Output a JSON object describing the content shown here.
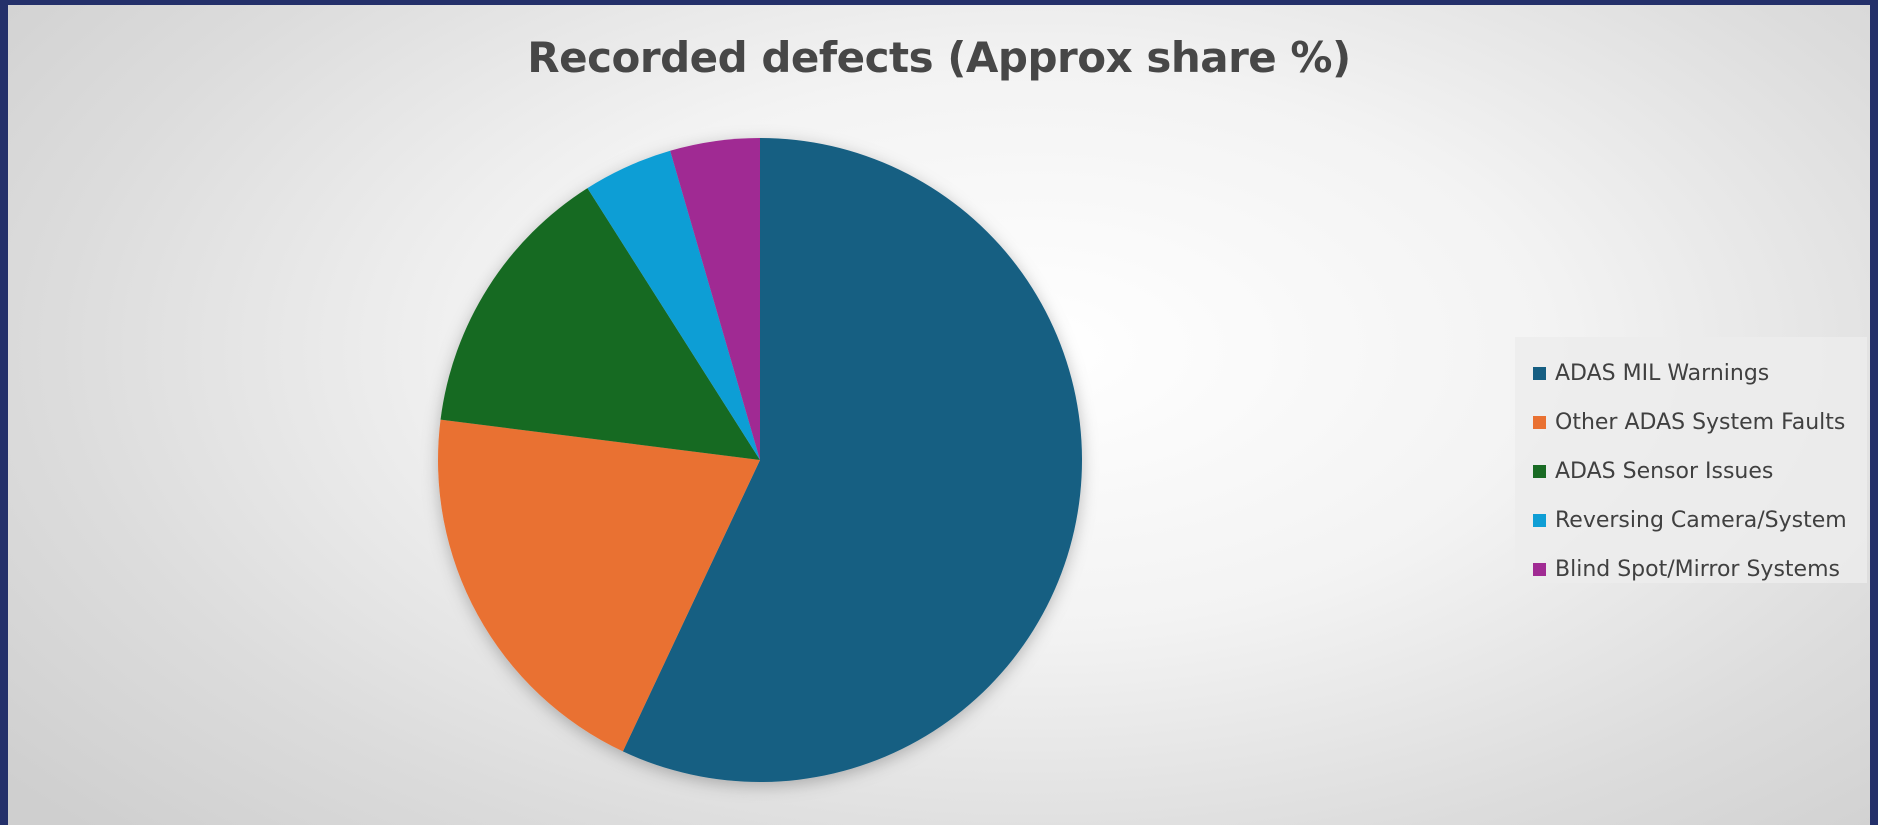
{
  "chart_data": {
    "type": "pie",
    "title": "Recorded defects (Approx share %)",
    "categories": [
      "ADAS MIL Warnings",
      "Other ADAS System Faults",
      "ADAS Sensor Issues",
      "Reversing Camera/System",
      "Blind Spot/Mirror Systems"
    ],
    "values": [
      57,
      20,
      14,
      4.5,
      4.5
    ],
    "colors": [
      "#165e82",
      "#e97132",
      "#196b24",
      "#0f9ed5",
      "#a02b93"
    ],
    "legend_position": "right"
  }
}
